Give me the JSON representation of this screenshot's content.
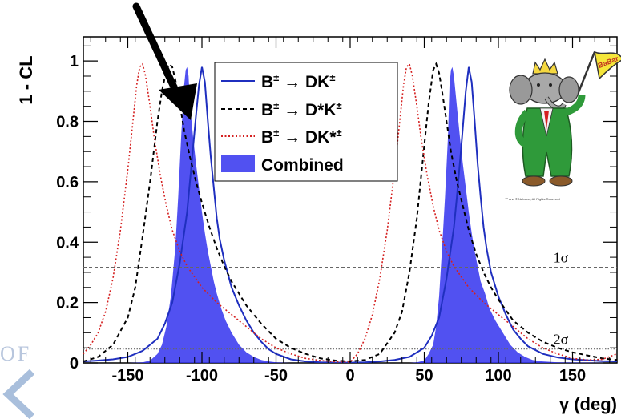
{
  "chart_data": {
    "type": "line",
    "title": "",
    "xlabel": "γ (deg)",
    "ylabel": "1 - CL",
    "xlim": [
      -180,
      180
    ],
    "ylim": [
      0,
      1.08
    ],
    "x_ticks": [
      -150,
      -100,
      -50,
      0,
      50,
      100,
      150
    ],
    "y_ticks": [
      0,
      0.2,
      0.4,
      0.6,
      0.8,
      1
    ],
    "x_tick_labels": [
      "-150",
      "-100",
      "-50",
      "0",
      "50",
      "100",
      "150"
    ],
    "y_tick_labels": [
      "0",
      "0.2",
      "0.4",
      "0.6",
      "0.8",
      "1"
    ],
    "grid": false,
    "legend_position": "top-center",
    "series": [
      {
        "name": "B± → DK±",
        "legend_main": "B",
        "legend_sup1": "±",
        "legend_arrow": " → DK",
        "legend_sup2": "±",
        "style": "solid",
        "color": "#1f2fbf",
        "x": [
          -180,
          -170,
          -160,
          -150,
          -140,
          -130,
          -125,
          -120,
          -115,
          -110,
          -107,
          -104,
          -102,
          -100,
          -98,
          -96,
          -94,
          -92,
          -90,
          -88,
          -85,
          -80,
          -75,
          -70,
          -65,
          -60,
          -55,
          -50,
          -40,
          -30,
          -20,
          -10,
          0,
          10,
          20,
          30,
          40,
          50,
          55,
          60,
          65,
          70,
          72,
          75,
          78,
          80,
          82,
          84,
          86,
          88,
          90,
          92,
          95,
          100,
          105,
          110,
          115,
          120,
          130,
          140,
          150,
          160,
          170,
          180
        ],
        "y": [
          0.005,
          0.008,
          0.012,
          0.02,
          0.04,
          0.08,
          0.13,
          0.2,
          0.33,
          0.5,
          0.66,
          0.82,
          0.92,
          0.98,
          0.93,
          0.8,
          0.68,
          0.58,
          0.48,
          0.41,
          0.34,
          0.25,
          0.19,
          0.14,
          0.1,
          0.07,
          0.045,
          0.03,
          0.012,
          0.005,
          0.002,
          0.001,
          0.001,
          0.002,
          0.005,
          0.01,
          0.02,
          0.05,
          0.09,
          0.15,
          0.28,
          0.45,
          0.55,
          0.72,
          0.9,
          0.98,
          0.93,
          0.8,
          0.66,
          0.55,
          0.45,
          0.38,
          0.3,
          0.22,
          0.16,
          0.11,
          0.08,
          0.055,
          0.03,
          0.018,
          0.012,
          0.009,
          0.006,
          0.005
        ]
      },
      {
        "name": "B± → D*K±",
        "legend_main": "B",
        "legend_sup1": "±",
        "legend_arrow": " → D*K",
        "legend_sup2": "±",
        "style": "dashed",
        "color": "#000000",
        "x": [
          -180,
          -170,
          -160,
          -150,
          -145,
          -140,
          -135,
          -130,
          -127,
          -124,
          -122,
          -120,
          -118,
          -115,
          -112,
          -108,
          -104,
          -100,
          -95,
          -90,
          -85,
          -80,
          -70,
          -60,
          -50,
          -40,
          -30,
          -20,
          -10,
          0,
          10,
          20,
          30,
          35,
          40,
          45,
          50,
          53,
          56,
          58,
          60,
          62,
          65,
          68,
          72,
          76,
          80,
          85,
          90,
          95,
          100,
          110,
          120,
          130,
          140,
          150,
          160,
          170,
          180
        ],
        "y": [
          0.005,
          0.02,
          0.06,
          0.15,
          0.25,
          0.42,
          0.6,
          0.8,
          0.9,
          0.97,
          0.99,
          0.98,
          0.94,
          0.86,
          0.77,
          0.68,
          0.6,
          0.53,
          0.45,
          0.38,
          0.32,
          0.27,
          0.19,
          0.13,
          0.08,
          0.05,
          0.03,
          0.015,
          0.008,
          0.005,
          0.01,
          0.03,
          0.1,
          0.17,
          0.3,
          0.48,
          0.72,
          0.86,
          0.97,
          0.99,
          0.96,
          0.9,
          0.8,
          0.7,
          0.6,
          0.52,
          0.44,
          0.36,
          0.3,
          0.25,
          0.21,
          0.14,
          0.1,
          0.07,
          0.05,
          0.035,
          0.025,
          0.015,
          0.01
        ]
      },
      {
        "name": "B± → DK*±",
        "legend_main": "B",
        "legend_sup1": "±",
        "legend_arrow": " → DK*",
        "legend_sup2": "±",
        "style": "dotted",
        "color": "#d42020",
        "x": [
          -180,
          -175,
          -170,
          -165,
          -160,
          -155,
          -150,
          -147,
          -144,
          -142,
          -140,
          -138,
          -135,
          -132,
          -128,
          -124,
          -120,
          -115,
          -110,
          -100,
          -90,
          -80,
          -70,
          -60,
          -50,
          -40,
          -30,
          -20,
          -10,
          0,
          5,
          10,
          15,
          20,
          25,
          30,
          33,
          36,
          38,
          40,
          42,
          45,
          48,
          52,
          56,
          60,
          65,
          70,
          80,
          90,
          100,
          110,
          120,
          130,
          140,
          150,
          160,
          170,
          180
        ],
        "y": [
          0.03,
          0.06,
          0.1,
          0.17,
          0.28,
          0.44,
          0.64,
          0.78,
          0.92,
          0.98,
          0.99,
          0.95,
          0.85,
          0.74,
          0.62,
          0.52,
          0.44,
          0.37,
          0.32,
          0.25,
          0.2,
          0.16,
          0.12,
          0.08,
          0.05,
          0.03,
          0.015,
          0.008,
          0.004,
          0.003,
          0.03,
          0.08,
          0.16,
          0.28,
          0.44,
          0.64,
          0.78,
          0.92,
          0.98,
          0.99,
          0.95,
          0.85,
          0.74,
          0.62,
          0.52,
          0.44,
          0.37,
          0.32,
          0.25,
          0.2,
          0.16,
          0.12,
          0.08,
          0.05,
          0.03,
          0.015,
          0.01,
          0.012,
          0.03
        ]
      },
      {
        "name": "Combined",
        "legend_main": "Combined",
        "style": "filled",
        "color": "#3333ee",
        "x": [
          -180,
          -150,
          -140,
          -135,
          -130,
          -127,
          -124,
          -121,
          -118,
          -116,
          -114,
          -112,
          -111,
          -110,
          -109,
          -108,
          -106,
          -104,
          -102,
          -100,
          -98,
          -96,
          -94,
          -92,
          -90,
          -87,
          -84,
          -80,
          -75,
          -70,
          -65,
          -60,
          -55,
          -50,
          -40,
          0,
          40,
          45,
          50,
          53,
          56,
          58,
          60,
          62,
          64,
          66,
          67,
          68,
          69,
          70,
          72,
          74,
          76,
          78,
          80,
          82,
          84,
          86,
          88,
          91,
          94,
          98,
          103,
          108,
          113,
          118,
          123,
          130,
          140,
          180
        ],
        "y": [
          0,
          0,
          0.002,
          0.008,
          0.03,
          0.06,
          0.12,
          0.22,
          0.38,
          0.55,
          0.75,
          0.92,
          0.97,
          0.98,
          0.95,
          0.85,
          0.75,
          0.66,
          0.58,
          0.5,
          0.43,
          0.37,
          0.32,
          0.27,
          0.23,
          0.18,
          0.14,
          0.1,
          0.06,
          0.035,
          0.02,
          0.01,
          0.005,
          0.002,
          0,
          0,
          0,
          0.002,
          0.008,
          0.03,
          0.06,
          0.12,
          0.22,
          0.38,
          0.55,
          0.75,
          0.92,
          0.97,
          0.98,
          0.95,
          0.85,
          0.75,
          0.66,
          0.58,
          0.5,
          0.43,
          0.37,
          0.32,
          0.27,
          0.23,
          0.18,
          0.14,
          0.1,
          0.06,
          0.035,
          0.02,
          0.01,
          0.005,
          0.002,
          0
        ]
      }
    ],
    "reference_lines": [
      {
        "y": 0.317,
        "label": "1σ",
        "style": "dashed",
        "color": "#666666"
      },
      {
        "y": 0.046,
        "label": "2σ",
        "style": "dotted",
        "color": "#666666"
      }
    ]
  },
  "logo": {
    "flag_text": "BaBar",
    "credit": "™ and © Nelvana, All Rights Reserved"
  },
  "watermark": {
    "text": "OF"
  }
}
